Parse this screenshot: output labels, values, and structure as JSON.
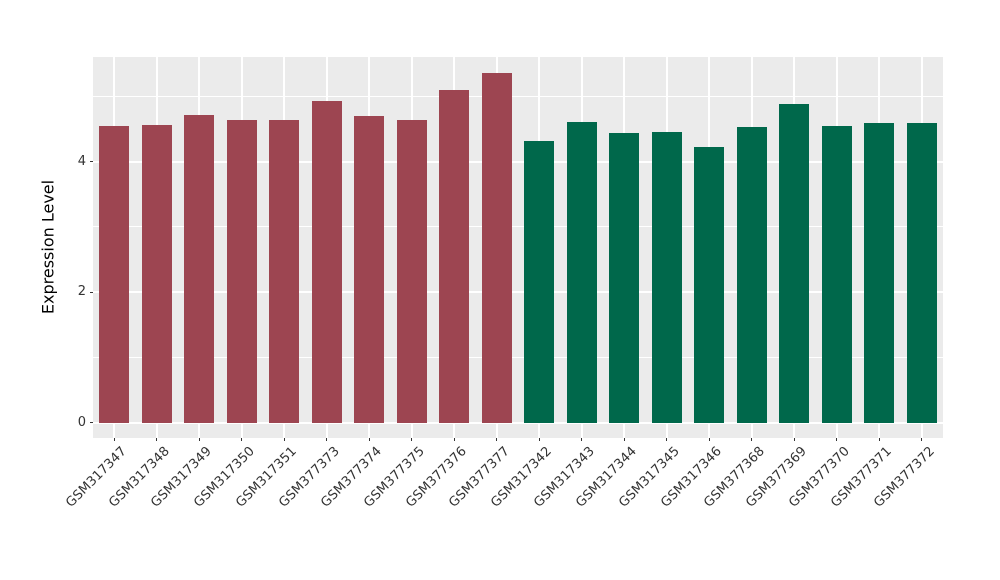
{
  "figure": {
    "background": "#FFFFFF",
    "panel_background": "#EBEBEB",
    "grid_color": "#FFFFFF",
    "tick_color": "#333333",
    "axis_text_color": "#333333"
  },
  "chart_data": {
    "type": "bar",
    "title": "",
    "xlabel": "",
    "ylabel": "Expression Level",
    "ylim": [
      -0.27,
      5.58
    ],
    "yticks": [
      0,
      2,
      4
    ],
    "yticks_minor": [
      1,
      3,
      5
    ],
    "grid": true,
    "legend": "none",
    "group_colors": {
      "group1": "#9D4551",
      "group2": "#00684B"
    },
    "bars": [
      {
        "label": "GSM317347",
        "value": 4.54,
        "group": "group1"
      },
      {
        "label": "GSM317348",
        "value": 4.56,
        "group": "group1"
      },
      {
        "label": "GSM317349",
        "value": 4.71,
        "group": "group1"
      },
      {
        "label": "GSM317350",
        "value": 4.64,
        "group": "group1"
      },
      {
        "label": "GSM317351",
        "value": 4.63,
        "group": "group1"
      },
      {
        "label": "GSM377373",
        "value": 4.92,
        "group": "group1"
      },
      {
        "label": "GSM377374",
        "value": 4.7,
        "group": "group1"
      },
      {
        "label": "GSM377375",
        "value": 4.64,
        "group": "group1"
      },
      {
        "label": "GSM377376",
        "value": 5.09,
        "group": "group1"
      },
      {
        "label": "GSM377377",
        "value": 5.35,
        "group": "group1"
      },
      {
        "label": "GSM317342",
        "value": 4.32,
        "group": "group2"
      },
      {
        "label": "GSM317343",
        "value": 4.61,
        "group": "group2"
      },
      {
        "label": "GSM317344",
        "value": 4.44,
        "group": "group2"
      },
      {
        "label": "GSM317345",
        "value": 4.45,
        "group": "group2"
      },
      {
        "label": "GSM317346",
        "value": 4.23,
        "group": "group2"
      },
      {
        "label": "GSM377368",
        "value": 4.53,
        "group": "group2"
      },
      {
        "label": "GSM377369",
        "value": 4.88,
        "group": "group2"
      },
      {
        "label": "GSM377370",
        "value": 4.54,
        "group": "group2"
      },
      {
        "label": "GSM377371",
        "value": 4.59,
        "group": "group2"
      },
      {
        "label": "GSM377372",
        "value": 4.59,
        "group": "group2"
      }
    ]
  }
}
